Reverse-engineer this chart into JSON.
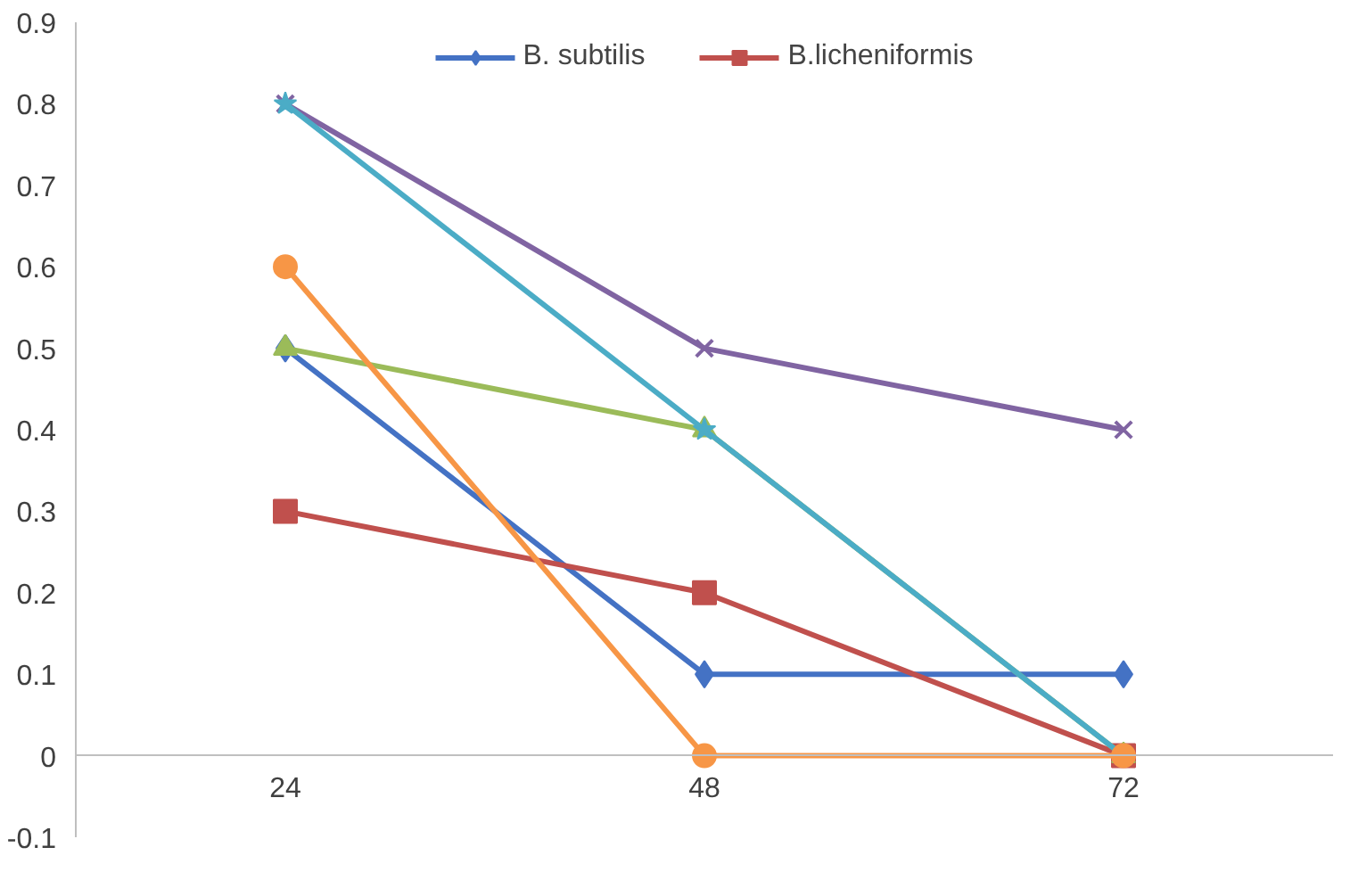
{
  "chart_data": {
    "type": "line",
    "categories": [
      "24",
      "48",
      "72"
    ],
    "ylim": [
      -0.1,
      0.9
    ],
    "yticks": [
      -0.1,
      0,
      0.1,
      0.2,
      0.3,
      0.4,
      0.5,
      0.6,
      0.7,
      0.8,
      0.9
    ],
    "grid": false,
    "legend": "top",
    "series": [
      {
        "name": "B. subtilis",
        "color": "#4472c4",
        "marker": "diamond",
        "values": [
          0.5,
          0.1,
          0.1
        ]
      },
      {
        "name": "B.licheniformis",
        "color": "#c0504d",
        "marker": "square",
        "values": [
          0.3,
          0.2,
          0
        ]
      },
      {
        "color": "#9bbb59",
        "marker": "triangle",
        "values": [
          0.5,
          0.4,
          0
        ]
      },
      {
        "color": "#8064a2",
        "marker": "cross",
        "values": [
          0.8,
          0.5,
          0.4
        ]
      },
      {
        "color": "#4bacc6",
        "marker": "star",
        "values": [
          0.8,
          0.4,
          0
        ]
      },
      {
        "color": "#f79646",
        "marker": "circle",
        "values": [
          0.6,
          0,
          0
        ]
      }
    ]
  }
}
